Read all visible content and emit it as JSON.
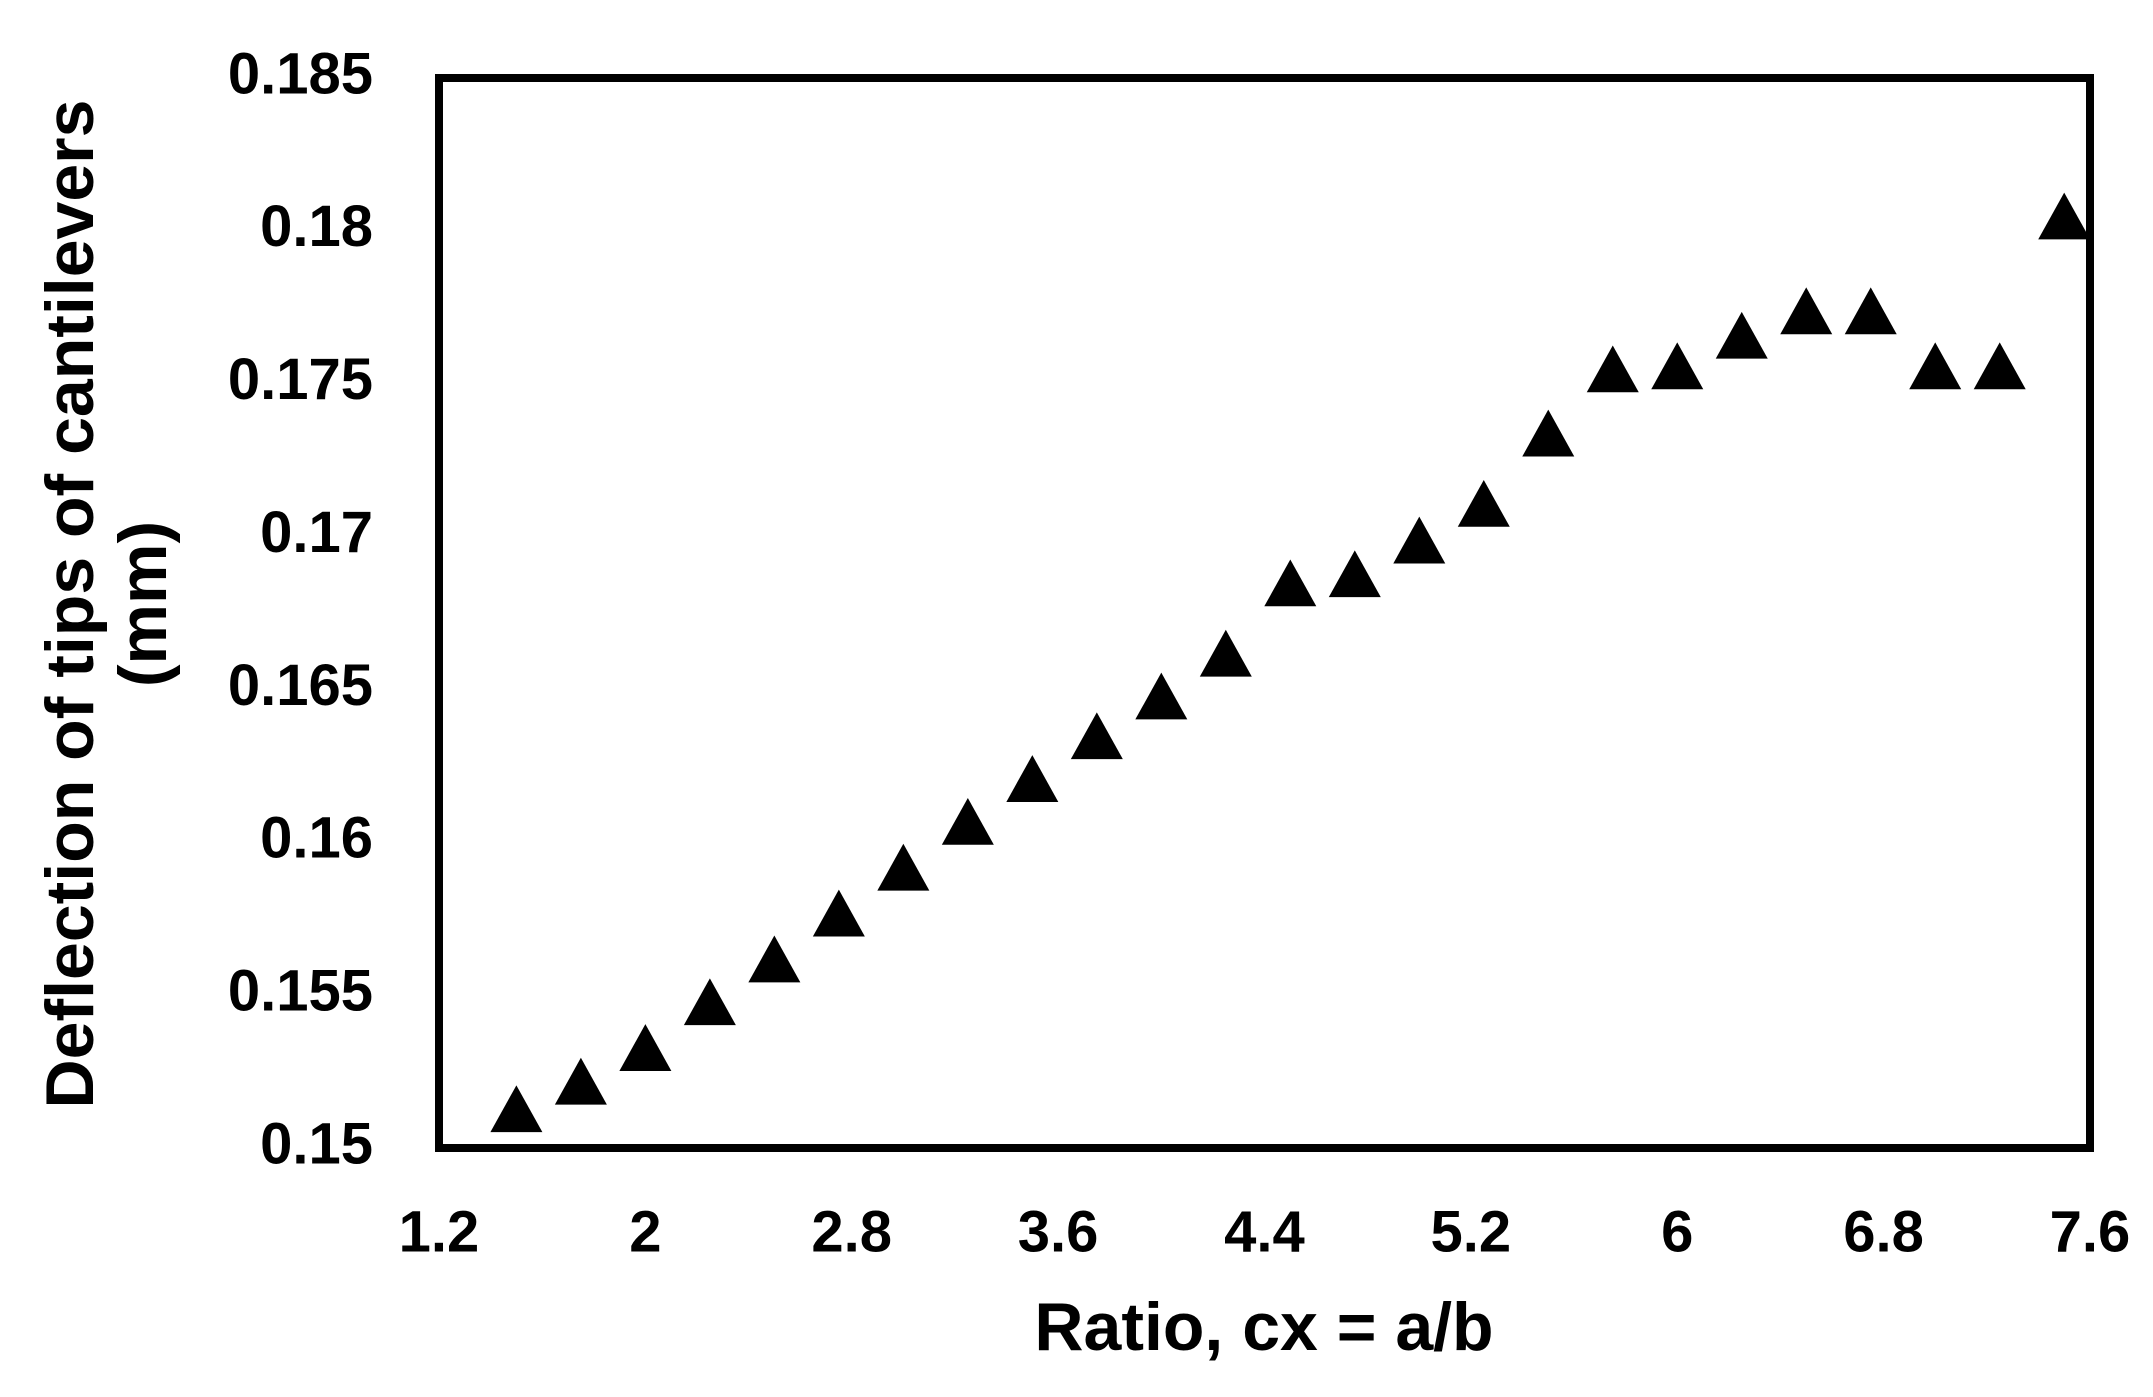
{
  "chart_data": {
    "type": "scatter",
    "x_label": "Ratio, cx = a/b",
    "y_label": [
      "Deflection of tips of cantilevers",
      "(mm)"
    ],
    "x": [
      1.5,
      1.75,
      2.0,
      2.25,
      2.5,
      2.75,
      3.0,
      3.25,
      3.5,
      3.75,
      4.0,
      4.25,
      4.5,
      4.75,
      5.0,
      5.25,
      5.5,
      5.75,
      6.0,
      6.25,
      6.5,
      6.75,
      7.0,
      7.25,
      7.5
    ],
    "values": [
      0.1512,
      0.1521,
      0.1532,
      0.1547,
      0.1561,
      0.1576,
      0.1591,
      0.1606,
      0.162,
      0.1634,
      0.1647,
      0.1661,
      0.1684,
      0.1687,
      0.1698,
      0.171,
      0.1733,
      0.1754,
      0.1755,
      0.1765,
      0.1773,
      0.1773,
      0.1755,
      0.1755,
      0.1804
    ],
    "marker": "triangle",
    "color": "#000000",
    "xlim": [
      1.2,
      7.6
    ],
    "xticks": [
      1.2,
      2,
      2.8,
      3.6,
      4.4,
      5.2,
      6,
      6.8,
      7.6
    ],
    "ylim": [
      0.15,
      0.185
    ],
    "yticks": [
      0.15,
      0.155,
      0.16,
      0.165,
      0.17,
      0.175,
      0.18,
      0.185
    ],
    "grid": false
  }
}
